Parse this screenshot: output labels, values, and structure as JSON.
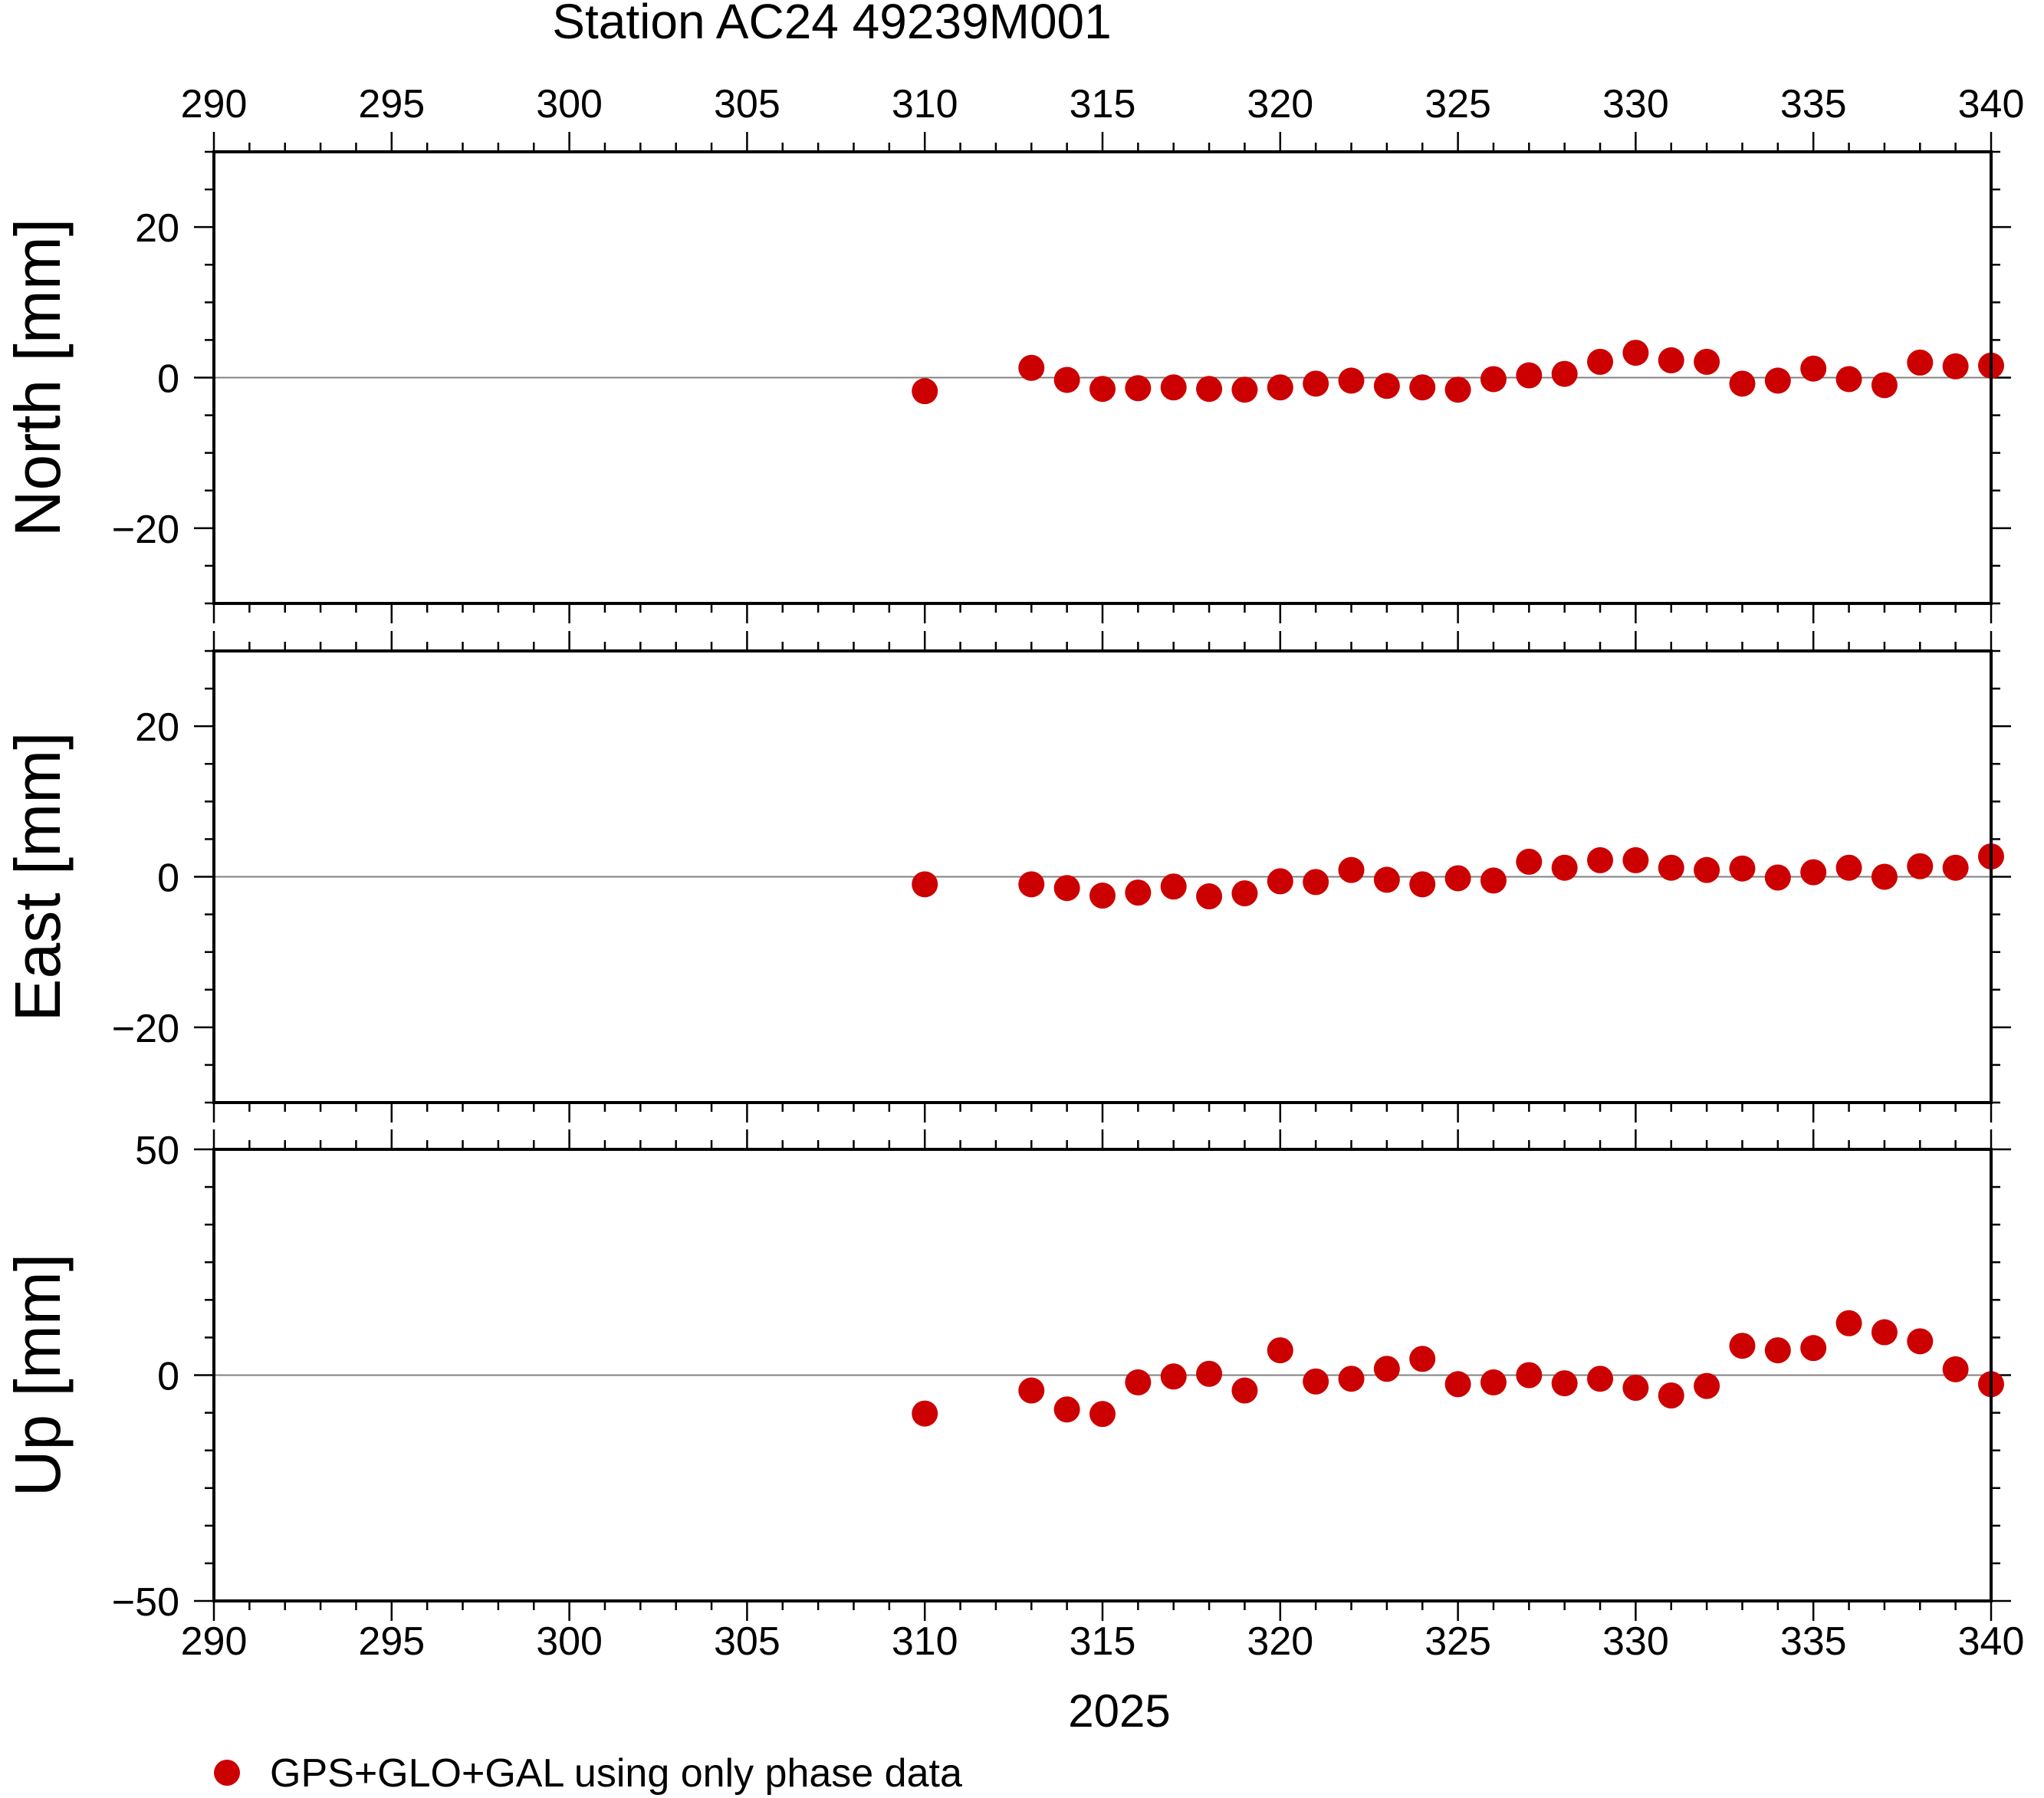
{
  "title": "Station AC24 49239M001",
  "xlabel": "2025",
  "legend": {
    "label": "GPS+GLO+GAL using only phase data",
    "color": "#cc0000",
    "position": "bottom-left"
  },
  "colors": {
    "marker": "#cc0000",
    "frame": "#000000",
    "zero_line": "#808080"
  },
  "chart_data": [
    {
      "type": "scatter",
      "panel": "north",
      "ylabel": "North [mm]",
      "xlim": [
        290,
        340
      ],
      "ylim": [
        -30,
        30
      ],
      "xticks": [
        290,
        295,
        300,
        305,
        310,
        315,
        320,
        325,
        330,
        335,
        340
      ],
      "yticks": [
        -20,
        0,
        20
      ],
      "ytick_labels": [
        "−20",
        "0",
        "20"
      ],
      "zero_line": true,
      "series": [
        {
          "x": [
            310,
            313,
            314,
            315,
            316,
            317,
            318,
            319,
            320,
            321,
            322,
            323,
            324,
            325,
            326,
            327,
            328,
            329,
            330,
            331,
            332,
            333,
            334,
            335,
            336,
            337,
            338,
            339,
            340
          ],
          "y": [
            -1.8,
            1.3,
            -0.3,
            -1.5,
            -1.4,
            -1.3,
            -1.5,
            -1.6,
            -1.3,
            -0.8,
            -0.4,
            -1.1,
            -1.3,
            -1.6,
            -0.2,
            0.3,
            0.5,
            2.1,
            3.3,
            2.3,
            2.1,
            -0.8,
            -0.4,
            1.2,
            -0.2,
            -1.0,
            2.0,
            1.5,
            1.6
          ]
        }
      ]
    },
    {
      "type": "scatter",
      "panel": "east",
      "ylabel": "East [mm]",
      "xlim": [
        290,
        340
      ],
      "ylim": [
        -30,
        30
      ],
      "xticks": [
        290,
        295,
        300,
        305,
        310,
        315,
        320,
        325,
        330,
        335,
        340
      ],
      "yticks": [
        -20,
        0,
        20
      ],
      "ytick_labels": [
        "−20",
        "0",
        "20"
      ],
      "zero_line": true,
      "series": [
        {
          "x": [
            310,
            313,
            314,
            315,
            316,
            317,
            318,
            319,
            320,
            321,
            322,
            323,
            324,
            325,
            326,
            327,
            328,
            329,
            330,
            331,
            332,
            333,
            334,
            335,
            336,
            337,
            338,
            339,
            340
          ],
          "y": [
            -1.0,
            -1.0,
            -1.5,
            -2.5,
            -2.1,
            -1.3,
            -2.6,
            -2.2,
            -0.6,
            -0.7,
            0.9,
            -0.4,
            -1.0,
            -0.2,
            -0.5,
            2.0,
            1.2,
            2.2,
            2.2,
            1.2,
            0.9,
            1.1,
            -0.1,
            0.6,
            1.2,
            0.0,
            1.4,
            1.2,
            2.7
          ]
        }
      ]
    },
    {
      "type": "scatter",
      "panel": "up",
      "ylabel": "Up [mm]",
      "xlim": [
        290,
        340
      ],
      "ylim": [
        -50,
        50
      ],
      "xticks": [
        290,
        295,
        300,
        305,
        310,
        315,
        320,
        325,
        330,
        335,
        340
      ],
      "yticks": [
        -50,
        0,
        50
      ],
      "ytick_labels": [
        "−50",
        "0",
        "50"
      ],
      "zero_line": true,
      "series": [
        {
          "x": [
            310,
            313,
            314,
            315,
            316,
            317,
            318,
            319,
            320,
            321,
            322,
            323,
            324,
            325,
            326,
            327,
            328,
            329,
            330,
            331,
            332,
            333,
            334,
            335,
            336,
            337,
            338,
            339,
            340
          ],
          "y": [
            -8.5,
            -3.4,
            -7.6,
            -8.6,
            -1.6,
            -0.3,
            0.3,
            -3.4,
            5.5,
            -1.4,
            -0.8,
            1.4,
            3.6,
            -2.0,
            -1.6,
            0.0,
            -1.8,
            -0.8,
            -2.8,
            -4.5,
            -2.4,
            6.5,
            5.5,
            6.0,
            11.5,
            9.5,
            7.5,
            1.3,
            -2.0
          ]
        }
      ]
    }
  ]
}
